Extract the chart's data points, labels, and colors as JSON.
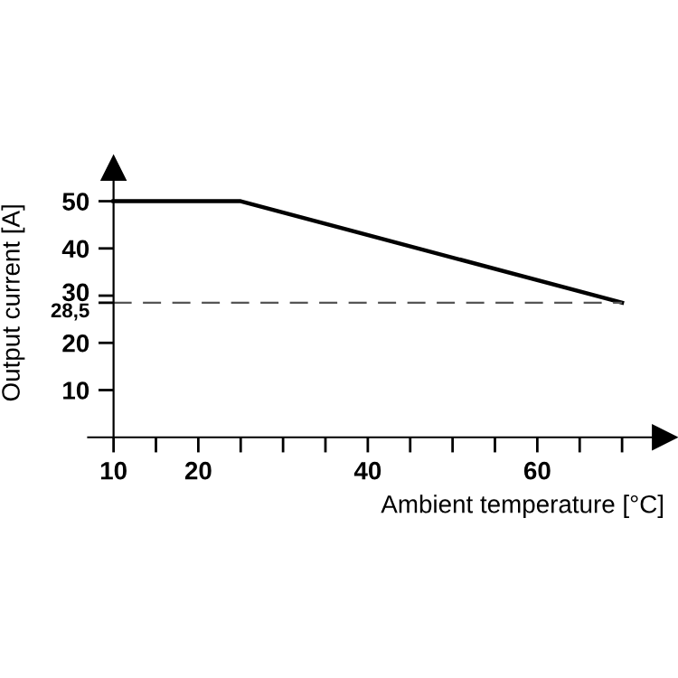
{
  "chart_data": {
    "type": "line",
    "x": [
      10,
      25,
      70
    ],
    "series": [
      {
        "color": "#000000",
        "values": [
          50,
          50,
          28.5
        ]
      }
    ],
    "xlabel": "Ambient temperature [°C]",
    "ylabel": "Output current [A]",
    "xlim": [
      7,
      75
    ],
    "ylim": [
      0,
      57
    ],
    "xticks": [
      10,
      {
        "value": 15,
        "label": null
      },
      20,
      {
        "value": 25,
        "label": null
      },
      {
        "value": 30,
        "label": null
      },
      {
        "value": 35,
        "label": null
      },
      40,
      {
        "value": 45,
        "label": null
      },
      {
        "value": 50,
        "label": null
      },
      {
        "value": 55,
        "label": null
      },
      60,
      {
        "value": 65,
        "label": null
      },
      {
        "value": 70,
        "label": null
      }
    ],
    "yticks": [
      10,
      20,
      {
        "value": 28.5,
        "label": "28,5"
      },
      30,
      40,
      50
    ],
    "ref_lines": [
      {
        "axis": "y",
        "value": 28.5,
        "label": null,
        "color": "#555555",
        "line_style": "dashed"
      }
    ],
    "grid": false,
    "legend": false,
    "marker": "none",
    "line_style": "solid"
  }
}
